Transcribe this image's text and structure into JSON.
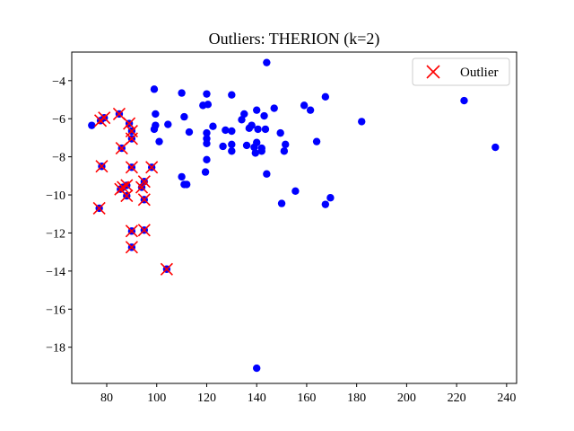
{
  "chart_data": {
    "type": "scatter",
    "title": "Outliers: THERION (k=2)",
    "xlabel": "",
    "ylabel": "",
    "xlim": [
      66,
      244
    ],
    "ylim": [
      -19.9,
      -2.5
    ],
    "xticks": [
      80,
      100,
      120,
      140,
      160,
      180,
      200,
      220,
      240
    ],
    "yticks": [
      -4,
      -6,
      -8,
      -10,
      -12,
      -14,
      -16,
      -18
    ],
    "grid": false,
    "legend": {
      "position": "top-right",
      "entries": [
        "Outlier"
      ]
    },
    "colors": {
      "points": "#0000ff",
      "outlier_marker": "#ff0000"
    },
    "series": [
      {
        "marker": "filled-circle",
        "points": [
          [
            74,
            -6.35
          ],
          [
            77.5,
            -6.1
          ],
          [
            79,
            -5.95
          ],
          [
            78,
            -8.5
          ],
          [
            77,
            -10.7
          ],
          [
            85,
            -5.75
          ],
          [
            86,
            -7.55
          ],
          [
            85.5,
            -9.7
          ],
          [
            86.5,
            -9.6
          ],
          [
            88,
            -10.05
          ],
          [
            88,
            -9.5
          ],
          [
            89,
            -6.25
          ],
          [
            90,
            -6.65
          ],
          [
            90,
            -7.05
          ],
          [
            90,
            -8.55
          ],
          [
            90,
            -11.9
          ],
          [
            90,
            -12.75
          ],
          [
            94,
            -9.6
          ],
          [
            95,
            -9.3
          ],
          [
            95,
            -10.25
          ],
          [
            95,
            -11.85
          ],
          [
            98,
            -8.55
          ],
          [
            104,
            -13.9
          ],
          [
            99,
            -4.45
          ],
          [
            99.5,
            -5.75
          ],
          [
            99,
            -6.55
          ],
          [
            99.5,
            -6.35
          ],
          [
            101,
            -7.2
          ],
          [
            104.5,
            -6.3
          ],
          [
            110,
            -4.65
          ],
          [
            111,
            -5.9
          ],
          [
            110,
            -9.05
          ],
          [
            111,
            -9.45
          ],
          [
            112,
            -9.45
          ],
          [
            113,
            -6.7
          ],
          [
            118.5,
            -5.3
          ],
          [
            120,
            -4.7
          ],
          [
            120.5,
            -5.25
          ],
          [
            120,
            -6.75
          ],
          [
            120,
            -7.05
          ],
          [
            120,
            -7.3
          ],
          [
            120,
            -8.15
          ],
          [
            119.5,
            -8.8
          ],
          [
            122.5,
            -6.4
          ],
          [
            126.5,
            -7.45
          ],
          [
            127.5,
            -6.6
          ],
          [
            130,
            -4.75
          ],
          [
            130,
            -6.65
          ],
          [
            130,
            -7.35
          ],
          [
            130,
            -7.7
          ],
          [
            134,
            -6.05
          ],
          [
            135,
            -5.75
          ],
          [
            136,
            -7.4
          ],
          [
            137,
            -6.5
          ],
          [
            138,
            -6.35
          ],
          [
            139,
            -7.5
          ],
          [
            139.5,
            -7.8
          ],
          [
            140,
            -5.55
          ],
          [
            140,
            -7.25
          ],
          [
            140,
            -19.1
          ],
          [
            140.5,
            -6.55
          ],
          [
            142,
            -7.55
          ],
          [
            142,
            -7.7
          ],
          [
            143,
            -5.85
          ],
          [
            143.5,
            -6.55
          ],
          [
            144,
            -8.9
          ],
          [
            144,
            -3.05
          ],
          [
            147,
            -5.45
          ],
          [
            149.5,
            -6.75
          ],
          [
            150,
            -10.45
          ],
          [
            151,
            -7.7
          ],
          [
            151.5,
            -7.35
          ],
          [
            155.5,
            -9.8
          ],
          [
            159,
            -5.3
          ],
          [
            161.5,
            -5.55
          ],
          [
            164,
            -7.2
          ],
          [
            167.5,
            -4.85
          ],
          [
            167.5,
            -10.5
          ],
          [
            169.5,
            -10.15
          ],
          [
            182,
            -6.15
          ],
          [
            223,
            -5.05
          ],
          [
            235.5,
            -7.5
          ]
        ]
      },
      {
        "name": "Outlier",
        "marker": "x",
        "points": [
          [
            77.5,
            -6.1
          ],
          [
            79,
            -5.95
          ],
          [
            78,
            -8.5
          ],
          [
            77,
            -10.7
          ],
          [
            85,
            -5.75
          ],
          [
            86,
            -7.55
          ],
          [
            85.5,
            -9.7
          ],
          [
            86.5,
            -9.6
          ],
          [
            88,
            -10.05
          ],
          [
            88,
            -9.5
          ],
          [
            89,
            -6.25
          ],
          [
            90,
            -6.65
          ],
          [
            90,
            -7.05
          ],
          [
            90,
            -8.55
          ],
          [
            90,
            -11.9
          ],
          [
            90,
            -12.75
          ],
          [
            94,
            -9.6
          ],
          [
            95,
            -9.3
          ],
          [
            95,
            -10.25
          ],
          [
            95,
            -11.85
          ],
          [
            98,
            -8.55
          ],
          [
            104,
            -13.9
          ]
        ]
      }
    ]
  }
}
